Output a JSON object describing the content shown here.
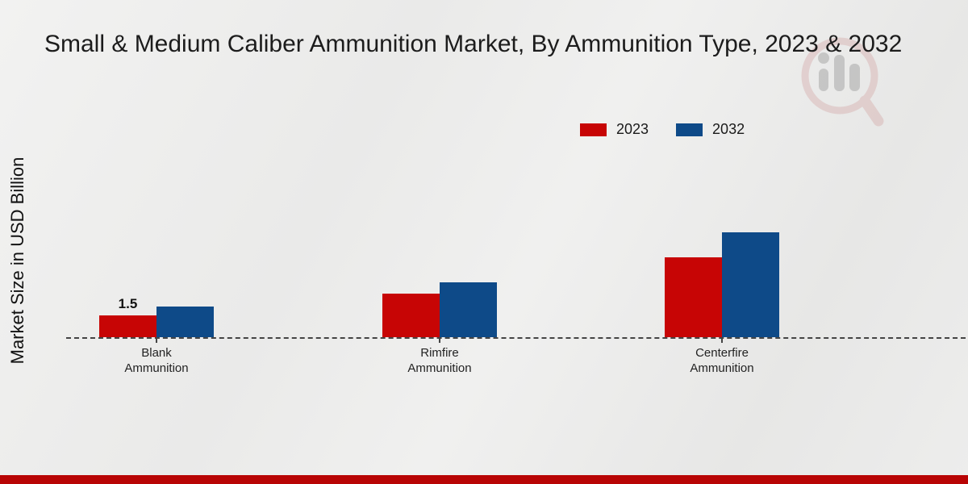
{
  "chart_data": {
    "type": "bar",
    "title": "Small & Medium Caliber Ammunition Market, By Ammunition Type, 2023 & 2032",
    "ylabel": "Market Size in USD Billion",
    "xlabel": "",
    "categories": [
      "Blank Ammunition",
      "Rimfire Ammunition",
      "Centerfire Ammunition"
    ],
    "series": [
      {
        "name": "2023",
        "color": "#c70505",
        "values": [
          1.5,
          3.0,
          5.5
        ]
      },
      {
        "name": "2032",
        "color": "#0e4a88",
        "values": [
          2.1,
          3.8,
          7.2
        ]
      }
    ],
    "ylim": [
      0,
      8
    ],
    "grid": false,
    "legend_position": "top-right",
    "axis_style": "dashed zero baseline, no visible y-axis ticks",
    "bar_labels": [
      {
        "series": 0,
        "category": 0,
        "text": "1.5"
      }
    ]
  },
  "colors": {
    "series_2023": "#c70505",
    "series_2032": "#0e4a88",
    "footer_bar": "#b80404",
    "baseline": "#444444",
    "background": "#ececeb"
  },
  "watermark": {
    "name": "magnifier-bar-chart-logo",
    "ring_color": "#c05a5a",
    "bars_color": "#9a9a9a"
  },
  "footer": {
    "label": ""
  }
}
